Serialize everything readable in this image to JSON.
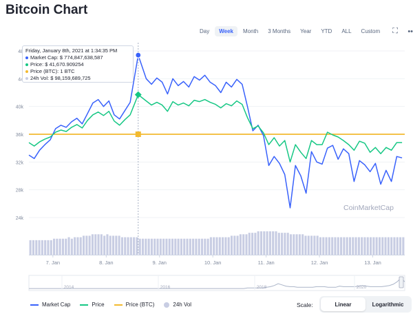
{
  "title": "Bitcoin Chart",
  "ranges": [
    "Day",
    "Week",
    "Month",
    "3 Months",
    "Year",
    "YTD",
    "ALL",
    "Custom"
  ],
  "active_range": "Week",
  "tools": [
    {
      "name": "fullscreen-icon",
      "glyph": "⛶"
    },
    {
      "name": "more-options-icon",
      "glyph": "•••"
    }
  ],
  "tooltip": {
    "date": "Friday, January 8th, 2021 at 1:34:35 PM",
    "rows": [
      {
        "label": "Market Cap: $ 774,847,638,587",
        "color": "#3861fb"
      },
      {
        "label": "Price: $ 41,670.909254",
        "color": "#16c784"
      },
      {
        "label": "Price (BTC): 1 BTC",
        "color": "#f3ba2f"
      },
      {
        "label": "24h Vol: $ 98,159,689,725",
        "color": "#c8cde3"
      }
    ]
  },
  "watermark": "CoinMarketCap",
  "legend": [
    {
      "label": "Market Cap",
      "color": "#3861fb",
      "kind": "line"
    },
    {
      "label": "Price",
      "color": "#16c784",
      "kind": "line"
    },
    {
      "label": "Price (BTC)",
      "color": "#f3ba2f",
      "kind": "line"
    },
    {
      "label": "24h Vol",
      "color": "#c8cde3",
      "kind": "circle"
    }
  ],
  "scale": {
    "label": "Scale:",
    "options": [
      "Linear",
      "Logarithmic"
    ],
    "active": "Linear"
  },
  "colors": {
    "market_cap": "#3861fb",
    "price": "#16c784",
    "price_btc": "#f3ba2f",
    "volume": "#c8cde3",
    "grid": "#eff2f5",
    "axis_text": "#808a9d"
  },
  "chart_data": {
    "type": "line",
    "y_ticks": [
      "48",
      "44",
      "40k",
      "36k",
      "32k",
      "28k",
      "24k"
    ],
    "ylim": [
      24000,
      48000
    ],
    "x_ticks": [
      "7. Jan",
      "8. Jan",
      "9. Jan",
      "10. Jan",
      "11. Jan",
      "12. Jan",
      "13. Jan"
    ],
    "xlim": [
      6.55,
      13.6
    ],
    "navigator_ticks": [
      "2014",
      "2016",
      "2018",
      "2020"
    ],
    "price_btc": 36000,
    "hover_x": 8.6,
    "series": [
      {
        "name": "Market Cap",
        "x": [
          6.55,
          6.65,
          6.75,
          6.85,
          6.95,
          7.05,
          7.15,
          7.25,
          7.35,
          7.45,
          7.55,
          7.65,
          7.75,
          7.85,
          7.95,
          8.05,
          8.15,
          8.25,
          8.35,
          8.45,
          8.6,
          8.75,
          8.85,
          8.95,
          9.05,
          9.15,
          9.25,
          9.35,
          9.45,
          9.55,
          9.65,
          9.75,
          9.85,
          9.95,
          10.05,
          10.15,
          10.25,
          10.35,
          10.45,
          10.55,
          10.65,
          10.75,
          10.85,
          10.95,
          11.05,
          11.15,
          11.25,
          11.35,
          11.45,
          11.55,
          11.65,
          11.75,
          11.85,
          11.95,
          12.05,
          12.15,
          12.25,
          12.35,
          12.45,
          12.55,
          12.65,
          12.75,
          12.85,
          12.95,
          13.05,
          13.15,
          13.25,
          13.35,
          13.45,
          13.55
        ],
        "values": [
          33000,
          32500,
          33700,
          34500,
          35200,
          36800,
          37300,
          37000,
          37800,
          38300,
          37500,
          39000,
          40500,
          41000,
          40000,
          40800,
          38800,
          38200,
          39400,
          40600,
          47400,
          44000,
          43200,
          44100,
          43500,
          41800,
          44000,
          43000,
          43600,
          42800,
          44300,
          43800,
          44500,
          43500,
          43000,
          42000,
          43500,
          42800,
          43900,
          43200,
          40000,
          36500,
          37300,
          35800,
          31500,
          32800,
          31800,
          30200,
          25400,
          31500,
          30000,
          27500,
          33500,
          32000,
          31700,
          34000,
          34400,
          32400,
          33900,
          33200,
          29200,
          32200,
          31600,
          30600,
          31800,
          28800,
          30800,
          29200,
          32800,
          32600
        ]
      },
      {
        "name": "Price",
        "x": [
          6.55,
          6.65,
          6.75,
          6.85,
          6.95,
          7.05,
          7.15,
          7.25,
          7.35,
          7.45,
          7.55,
          7.65,
          7.75,
          7.85,
          7.95,
          8.05,
          8.15,
          8.25,
          8.35,
          8.45,
          8.6,
          8.75,
          8.85,
          8.95,
          9.05,
          9.15,
          9.25,
          9.35,
          9.45,
          9.55,
          9.65,
          9.75,
          9.85,
          9.95,
          10.05,
          10.15,
          10.25,
          10.35,
          10.45,
          10.55,
          10.65,
          10.75,
          10.85,
          10.95,
          11.05,
          11.15,
          11.25,
          11.35,
          11.45,
          11.55,
          11.65,
          11.75,
          11.85,
          11.95,
          12.05,
          12.15,
          12.25,
          12.35,
          12.45,
          12.55,
          12.65,
          12.75,
          12.85,
          12.95,
          13.05,
          13.15,
          13.25,
          13.35,
          13.45,
          13.55
        ],
        "values": [
          34800,
          34300,
          34900,
          35300,
          35600,
          36300,
          36600,
          36400,
          37000,
          37400,
          36900,
          38000,
          38800,
          39200,
          38700,
          39300,
          37900,
          37300,
          38100,
          38800,
          41700,
          40800,
          40200,
          40600,
          40200,
          39300,
          40700,
          40200,
          40500,
          40100,
          40900,
          40700,
          41000,
          40600,
          40300,
          39800,
          40400,
          40100,
          40800,
          40300,
          38400,
          36800,
          37200,
          36200,
          34500,
          35500,
          34300,
          35100,
          32000,
          34500,
          33400,
          32500,
          35100,
          34500,
          34500,
          36300,
          35900,
          35600,
          35100,
          34500,
          33700,
          35000,
          34700,
          33400,
          34100,
          33200,
          34100,
          33700,
          34800,
          34800
        ]
      }
    ],
    "volume": [
      8,
      8,
      8,
      8,
      8,
      8,
      8,
      8,
      9,
      9,
      9,
      9,
      9,
      10,
      9,
      10,
      10,
      10,
      11,
      11,
      11,
      12,
      12,
      12,
      12,
      11,
      12,
      11,
      11,
      11,
      11,
      10,
      10,
      10,
      10,
      10,
      10,
      9,
      9,
      9,
      9,
      9,
      9,
      9,
      9,
      9,
      9,
      9,
      9,
      9,
      9,
      9,
      9,
      9,
      9,
      9,
      9,
      9,
      9,
      9,
      9,
      10,
      10,
      10,
      10,
      10,
      10,
      10,
      11,
      11,
      11,
      12,
      12,
      12,
      13,
      13,
      13,
      14,
      14,
      14,
      14,
      14,
      14,
      14,
      13,
      13,
      13,
      13,
      12,
      12,
      12,
      12,
      12,
      11,
      11,
      11,
      11,
      11,
      10,
      10,
      10,
      10,
      10,
      10,
      10,
      10,
      10,
      10,
      10,
      10,
      10,
      10,
      10,
      10,
      10,
      10,
      10,
      10,
      10,
      10,
      10,
      10,
      10,
      10,
      10,
      10,
      10
    ],
    "navigator": [
      1,
      1,
      1,
      1,
      1,
      1,
      1,
      1,
      1,
      1,
      1,
      1,
      1,
      1,
      1,
      1,
      1,
      1,
      1,
      1,
      1,
      1,
      1,
      1,
      1,
      1,
      1,
      1,
      1,
      1,
      1,
      1,
      1,
      1,
      1,
      1,
      1,
      1,
      1,
      1,
      1,
      1,
      1,
      1,
      1,
      1,
      1,
      1,
      1,
      1,
      1,
      1,
      1,
      1,
      1,
      1,
      1,
      2,
      2,
      2,
      2,
      2,
      3,
      4,
      6,
      9,
      7,
      5,
      4,
      4,
      3,
      3,
      3,
      3,
      3,
      4,
      4,
      4,
      3,
      3,
      3,
      5,
      4,
      4,
      4,
      4,
      5,
      6,
      5,
      4,
      4,
      4,
      4,
      5,
      6,
      8,
      12,
      18,
      12
    ]
  }
}
